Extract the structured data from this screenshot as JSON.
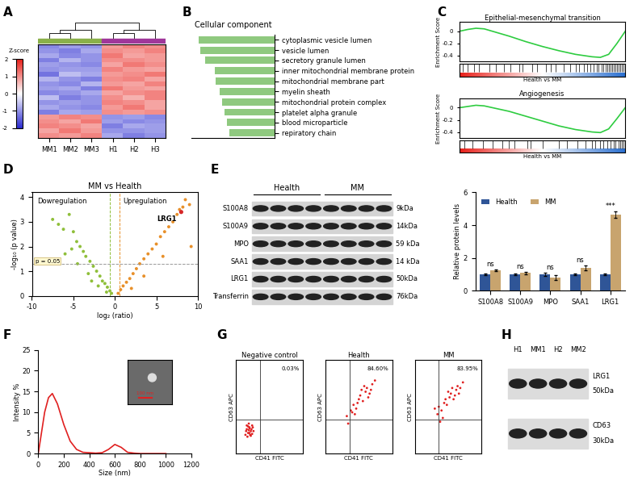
{
  "panel_labels": [
    "A",
    "B",
    "C",
    "D",
    "E",
    "F",
    "G",
    "H"
  ],
  "chart_data": [
    {
      "type": "heatmap",
      "categories": [
        "MM1",
        "MM2",
        "MM3",
        "H1",
        "H2",
        "H3"
      ],
      "cells": [
        [
          -1.1,
          -0.9,
          -1.0,
          0.9,
          1.1,
          1.0
        ],
        [
          -1.0,
          -1.2,
          -0.8,
          1.0,
          0.9,
          1.1
        ],
        [
          -0.8,
          -1.1,
          -1.0,
          1.2,
          0.8,
          0.9
        ],
        [
          -1.2,
          -0.7,
          -1.0,
          1.0,
          1.0,
          0.9
        ],
        [
          -0.9,
          -1.0,
          -1.1,
          0.8,
          1.2,
          1.0
        ],
        [
          -1.0,
          -0.9,
          -0.9,
          1.1,
          0.9,
          0.8
        ],
        [
          -1.3,
          -0.6,
          -0.8,
          0.9,
          1.0,
          1.2
        ],
        [
          -0.7,
          -1.0,
          -1.2,
          1.0,
          1.1,
          0.8
        ],
        [
          -1.0,
          -1.1,
          -0.7,
          0.9,
          0.8,
          1.1
        ],
        [
          -0.9,
          -0.8,
          -1.2,
          1.2,
          0.9,
          0.8
        ],
        [
          -1.1,
          -1.0,
          -0.8,
          0.8,
          1.0,
          1.1
        ],
        [
          -0.6,
          -1.2,
          -1.0,
          1.0,
          0.7,
          1.1
        ],
        [
          -1.0,
          -0.9,
          -1.0,
          1.1,
          1.0,
          0.8
        ],
        [
          -0.8,
          -1.0,
          -1.1,
          0.9,
          1.2,
          0.8
        ],
        [
          -1.2,
          -0.8,
          -0.9,
          1.0,
          0.9,
          1.0
        ],
        [
          0.9,
          1.1,
          1.0,
          -1.0,
          -0.9,
          -1.1
        ],
        [
          1.0,
          0.8,
          1.2,
          -0.9,
          -1.1,
          -1.0
        ],
        [
          1.1,
          1.0,
          0.8,
          -1.2,
          -0.8,
          -0.9
        ],
        [
          0.8,
          1.2,
          0.9,
          -1.0,
          -1.0,
          -0.9
        ],
        [
          1.0,
          0.9,
          1.1,
          -0.8,
          -1.2,
          -1.0
        ]
      ],
      "z_range": [
        -2,
        2
      ],
      "colorbar_ticks": [
        -2,
        -1,
        0,
        1,
        2
      ],
      "colorbar_label": "Z-score"
    },
    {
      "type": "bar",
      "orientation": "horizontal",
      "title": "Cellular component",
      "categories": [
        "cytoplasmic vesicle lumen",
        "vesicle lumen",
        "secretory granule lumen",
        "inner mitochondrial membrane protein",
        "mitochondrial membrane part",
        "myelin sheath",
        "mitochondrial protein complex",
        "platelet alpha granule",
        "blood microparticle",
        "repiratory chain"
      ],
      "values": [
        10.0,
        9.8,
        9.2,
        7.9,
        7.8,
        7.2,
        6.9,
        6.6,
        6.3,
        6.0
      ],
      "color": "#8fc97f",
      "xlim": [
        11,
        0
      ],
      "tick_labels": "y"
    },
    {
      "type": "line",
      "title": "Epithelial-mesenchymal transition",
      "y_label": "Enrichment Score",
      "x_label": "Health vs MM",
      "x": [
        0,
        5,
        10,
        15,
        20,
        30,
        40,
        50,
        60,
        70,
        80,
        85,
        90,
        95,
        100
      ],
      "values": [
        0,
        0.03,
        0.05,
        0.04,
        0.0,
        -0.08,
        -0.17,
        -0.25,
        -0.32,
        -0.38,
        -0.42,
        -0.43,
        -0.38,
        -0.2,
        0
      ],
      "hits": [
        2,
        5,
        9,
        12,
        18,
        22,
        27,
        31,
        36,
        38,
        44,
        47,
        52,
        55,
        58,
        63,
        67,
        70,
        72,
        75,
        77,
        79,
        81,
        83,
        84,
        86,
        87,
        88,
        89,
        90,
        91,
        92,
        93,
        94,
        95,
        96,
        97,
        98,
        99
      ],
      "color": "#2ecc40",
      "xlim": [
        0,
        100
      ],
      "ylim": [
        -0.5,
        0.15
      ],
      "yticks": [
        -0.4,
        -0.2,
        0
      ],
      "tick_labels": "y"
    },
    {
      "type": "line",
      "title": "Angiogenesis",
      "y_label": "Enrichment Score",
      "x_label": "Health vs MM",
      "x": [
        0,
        5,
        10,
        15,
        20,
        30,
        40,
        50,
        60,
        70,
        80,
        85,
        90,
        95,
        100
      ],
      "values": [
        0,
        0.02,
        0.04,
        0.03,
        0.0,
        -0.06,
        -0.14,
        -0.22,
        -0.3,
        -0.36,
        -0.4,
        -0.41,
        -0.35,
        -0.18,
        0
      ],
      "hits": [
        3,
        8,
        14,
        20,
        26,
        30,
        33,
        41,
        43,
        50,
        60,
        65,
        71,
        76,
        80,
        82,
        85,
        87,
        89,
        91,
        93,
        94,
        96,
        97,
        98,
        99
      ],
      "color": "#2ecc40",
      "xlim": [
        0,
        100
      ],
      "ylim": [
        -0.5,
        0.15
      ],
      "yticks": [
        -0.4,
        -0.2,
        0
      ],
      "tick_labels": "y"
    },
    {
      "type": "scatter",
      "title": "MM vs Health",
      "x_label": "log₂ (ratio)",
      "y_label": "-log₁₀ (p value)",
      "left_text": "Dowregulation",
      "right_text": "Upregulation",
      "series": [
        {
          "color": "#8fbf3a",
          "x": [
            -7.5,
            -6.8,
            -6.2,
            -5.5,
            -5.0,
            -4.6,
            -4.2,
            -3.8,
            -3.5,
            -3.0,
            -2.6,
            -2.2,
            -1.8,
            -1.5,
            -1.2,
            -0.9,
            -0.6,
            -0.4,
            -3.2,
            -2.0,
            -4.5,
            -1.0,
            -6.0,
            -5.2,
            -2.8
          ],
          "values": [
            3.1,
            2.9,
            2.7,
            3.3,
            2.6,
            2.2,
            2.0,
            1.8,
            1.6,
            1.4,
            1.2,
            1.0,
            0.8,
            0.6,
            0.5,
            0.35,
            0.2,
            0.1,
            0.9,
            0.4,
            1.3,
            0.15,
            1.7,
            1.9,
            0.6
          ]
        },
        {
          "color": "#e8902a",
          "x": [
            0.4,
            0.7,
            1.0,
            1.4,
            1.8,
            2.2,
            2.6,
            3.0,
            3.5,
            4.0,
            4.5,
            5.0,
            5.5,
            6.0,
            6.5,
            7.0,
            7.5,
            7.8,
            8.2,
            8.5,
            9.0,
            9.2,
            2.0,
            3.5,
            5.8
          ],
          "values": [
            0.1,
            0.25,
            0.4,
            0.55,
            0.7,
            0.9,
            1.1,
            1.3,
            1.5,
            1.7,
            1.9,
            2.1,
            2.4,
            2.6,
            2.8,
            3.0,
            3.3,
            3.5,
            3.6,
            3.9,
            3.7,
            2.0,
            0.3,
            0.8,
            1.6
          ]
        }
      ],
      "highlight": {
        "label": "LRG1",
        "x": 8.0,
        "y": 3.4,
        "color": "#d62728"
      },
      "thresholds": {
        "x": [
          -0.58,
          0.58
        ],
        "y": 1.3,
        "label": "p = 0.05"
      },
      "xlim": [
        -10,
        10
      ],
      "xticks": [
        -10,
        -5,
        0,
        5,
        10
      ],
      "ylim": [
        0,
        4.2
      ],
      "yticks": [
        0,
        1,
        2,
        3,
        4
      ]
    },
    {
      "type": "bar",
      "y_label": "Relative protein levels",
      "categories": [
        "S100A8",
        "S100A9",
        "MPO",
        "SAA1",
        "LRG1"
      ],
      "series": [
        {
          "name": "Health",
          "color": "#2f5597",
          "values": [
            1,
            1,
            1,
            1,
            1
          ],
          "errors": [
            0.05,
            0.04,
            0.08,
            0.05,
            0.06
          ]
        },
        {
          "name": "MM",
          "color": "#c8a46e",
          "values": [
            1.25,
            1.08,
            0.82,
            1.38,
            4.65
          ],
          "errors": [
            0.05,
            0.05,
            0.15,
            0.15,
            0.2
          ]
        }
      ],
      "annotations": [
        "ns",
        "ns",
        "ns",
        "ns",
        "***"
      ],
      "ylim": [
        0,
        6
      ],
      "yticks": [
        0,
        2,
        4,
        6
      ],
      "legend": "upper left"
    },
    {
      "type": "line",
      "x_label": "Size (nm)",
      "y_label": "Intensity %",
      "inset_label": "100 nm",
      "color": "#e02020",
      "x": [
        0,
        20,
        50,
        80,
        110,
        150,
        200,
        250,
        300,
        350,
        400,
        450,
        500,
        550,
        600,
        650,
        700,
        750,
        800,
        900,
        1000
      ],
      "values": [
        0,
        4,
        10,
        13.5,
        14.5,
        12,
        7,
        3,
        1,
        0.3,
        0.2,
        0.1,
        0.2,
        1,
        2.2,
        1.5,
        0.3,
        0.1,
        0,
        0,
        0
      ],
      "xlim": [
        0,
        1200
      ],
      "xticks": [
        0,
        200,
        400,
        600,
        800,
        1000,
        1200
      ],
      "ylim": [
        0,
        25
      ],
      "yticks": [
        0,
        5,
        10,
        15,
        20,
        25
      ]
    },
    {
      "type": "scatter",
      "title": "Negative control",
      "x_label": "CD41 FITC",
      "y_label": "CD63 APC",
      "quadrant_label": "0.03%",
      "color": "#e02020",
      "gates": {
        "x": 1.8,
        "y": 1.8
      },
      "x": [
        0.7,
        0.8,
        0.9,
        1.0,
        1.1,
        1.2,
        0.85,
        0.95,
        1.05,
        1.15,
        0.75,
        1.0,
        1.25,
        0.9,
        1.1,
        1.3,
        0.8,
        1.0,
        1.2,
        0.95
      ],
      "values": [
        1.0,
        1.3,
        1.1,
        1.4,
        1.2,
        1.5,
        0.9,
        1.6,
        1.0,
        1.3,
        1.2,
        1.1,
        1.4,
        1.45,
        0.95,
        1.2,
        1.5,
        1.35,
        1.05,
        1.25
      ],
      "xlim": [
        0,
        5
      ],
      "ylim": [
        0,
        5
      ],
      "tick_labels": false
    },
    {
      "type": "scatter",
      "title": "Health",
      "x_label": "CD41 FITC",
      "y_label": "CD63 APC",
      "quadrant_label": "84.60%",
      "color": "#e02020",
      "gates": {
        "x": 1.8,
        "y": 1.8
      },
      "x": [
        1.6,
        1.9,
        2.1,
        2.3,
        2.5,
        2.6,
        2.8,
        3.0,
        3.1,
        3.3,
        3.5,
        3.7,
        2.2,
        2.7,
        3.2,
        1.7,
        2.4,
        2.9,
        3.4,
        2.0
      ],
      "values": [
        2.0,
        2.3,
        2.6,
        2.4,
        2.9,
        3.1,
        2.8,
        3.3,
        3.5,
        3.2,
        3.7,
        3.9,
        2.1,
        3.4,
        3.0,
        1.6,
        2.7,
        3.6,
        3.4,
        2.2
      ],
      "xlim": [
        0,
        5
      ],
      "ylim": [
        0,
        5
      ],
      "tick_labels": false
    },
    {
      "type": "scatter",
      "title": "MM",
      "x_label": "CD41 FITC",
      "y_label": "CD63 APC",
      "quadrant_label": "83.95%",
      "color": "#e02020",
      "gates": {
        "x": 1.8,
        "y": 1.8
      },
      "x": [
        1.7,
        1.8,
        2.0,
        2.2,
        2.4,
        2.6,
        2.7,
        2.9,
        3.1,
        3.2,
        3.4,
        3.6,
        2.1,
        2.5,
        3.0,
        1.5,
        2.3,
        2.8,
        3.3,
        1.9
      ],
      "values": [
        2.1,
        2.5,
        2.3,
        2.7,
        2.6,
        3.0,
        3.2,
        2.9,
        3.4,
        3.6,
        3.5,
        3.8,
        1.9,
        3.3,
        3.1,
        2.4,
        2.9,
        3.5,
        3.2,
        1.7
      ],
      "xlim": [
        0,
        5
      ],
      "ylim": [
        0,
        5
      ],
      "tick_labels": false
    }
  ],
  "blot_E": {
    "groups": [
      {
        "label": "Health",
        "lanes": 4
      },
      {
        "label": "MM",
        "lanes": 4
      }
    ],
    "rows": [
      {
        "protein": "S100A8",
        "size": "9kDa"
      },
      {
        "protein": "S100A9",
        "size": "14kDa"
      },
      {
        "protein": "MPO",
        "size": "59 kDa"
      },
      {
        "protein": "SAA1",
        "size": "14 kDa"
      },
      {
        "protein": "LRG1",
        "size": "50kDa"
      },
      {
        "protein": "Transferrin",
        "size": "76kDa"
      }
    ]
  },
  "blot_H": {
    "lanes": [
      "H1",
      "MM1",
      "H2",
      "MM2"
    ],
    "rows": [
      {
        "protein": "LRG1",
        "size": "50kDa"
      },
      {
        "protein": "CD63",
        "size": "30kDa"
      }
    ]
  }
}
